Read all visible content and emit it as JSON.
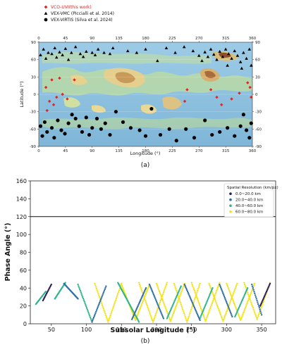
{
  "chart_data": [
    {
      "type": "scatter",
      "caption": "(a)",
      "xlabel": "Longitude (°)",
      "ylabel": "Latitude (°)",
      "xlim": [
        0,
        360
      ],
      "ylim": [
        -90,
        90
      ],
      "xticks": [
        "0",
        "45",
        "90",
        "135",
        "180",
        "225",
        "270",
        "315",
        "360"
      ],
      "yticks": [
        "90",
        "60",
        "30",
        "0",
        "-30",
        "-60",
        "-90"
      ],
      "background": "Venus topography map",
      "legend_position": "top-left, above plot",
      "series": [
        {
          "name": "VCO-UVI(this work)",
          "marker": "diamond",
          "color": "#e32222",
          "points": [
            [
              12,
              12
            ],
            [
              18,
              -12
            ],
            [
              22,
              25
            ],
            [
              25,
              -18
            ],
            [
              30,
              -5
            ],
            [
              35,
              28
            ],
            [
              14,
              -28
            ],
            [
              40,
              0
            ],
            [
              48,
              -8
            ],
            [
              60,
              25
            ],
            [
              250,
              8
            ],
            [
              246,
              -12
            ],
            [
              290,
              8
            ],
            [
              300,
              -5
            ],
            [
              308,
              -18
            ],
            [
              325,
              -8
            ],
            [
              338,
              2
            ],
            [
              352,
              20
            ],
            [
              356,
              12
            ],
            [
              358,
              -5
            ]
          ]
        },
        {
          "name": "VEX-VMC (Piccialli et al. 2014)",
          "marker": "triangle",
          "color": "#000000",
          "points": [
            [
              3,
              68
            ],
            [
              8,
              78
            ],
            [
              12,
              62
            ],
            [
              16,
              72
            ],
            [
              22,
              70
            ],
            [
              27,
              80
            ],
            [
              30,
              64
            ],
            [
              35,
              73
            ],
            [
              40,
              68
            ],
            [
              45,
              79
            ],
            [
              50,
              60
            ],
            [
              55,
              72
            ],
            [
              62,
              82
            ],
            [
              70,
              70
            ],
            [
              75,
              65
            ],
            [
              80,
              74
            ],
            [
              90,
              72
            ],
            [
              95,
              68
            ],
            [
              100,
              78
            ],
            [
              110,
              72
            ],
            [
              120,
              70
            ],
            [
              125,
              80
            ],
            [
              150,
              75
            ],
            [
              165,
              72
            ],
            [
              180,
              78
            ],
            [
              200,
              58
            ],
            [
              215,
              80
            ],
            [
              230,
              72
            ],
            [
              245,
              82
            ],
            [
              260,
              75
            ],
            [
              270,
              67
            ],
            [
              275,
              58
            ],
            [
              280,
              73
            ],
            [
              285,
              65
            ],
            [
              290,
              78
            ],
            [
              295,
              69
            ],
            [
              300,
              60
            ],
            [
              305,
              74
            ],
            [
              310,
              65
            ],
            [
              315,
              78
            ],
            [
              320,
              70
            ],
            [
              325,
              62
            ],
            [
              330,
              75
            ],
            [
              335,
              67
            ],
            [
              340,
              56
            ],
            [
              345,
              72
            ],
            [
              350,
              62
            ],
            [
              355,
              78
            ],
            [
              358,
              50
            ],
            [
              342,
              45
            ],
            [
              318,
              50
            ]
          ]
        },
        {
          "name": "VEX-VIRTIS (Silva et al. 2024)",
          "marker": "circle",
          "color": "#000000",
          "points": [
            [
              3,
              -55
            ],
            [
              6,
              -72
            ],
            [
              10,
              -48
            ],
            [
              14,
              -65
            ],
            [
              22,
              -58
            ],
            [
              26,
              -75
            ],
            [
              32,
              -45
            ],
            [
              38,
              -62
            ],
            [
              44,
              -68
            ],
            [
              50,
              -50
            ],
            [
              56,
              -35
            ],
            [
              62,
              -42
            ],
            [
              68,
              -55
            ],
            [
              73,
              -65
            ],
            [
              80,
              -40
            ],
            [
              85,
              -70
            ],
            [
              90,
              -58
            ],
            [
              98,
              -42
            ],
            [
              105,
              -60
            ],
            [
              112,
              -50
            ],
            [
              120,
              -70
            ],
            [
              130,
              -30
            ],
            [
              142,
              -48
            ],
            [
              155,
              -58
            ],
            [
              170,
              -62
            ],
            [
              180,
              -72
            ],
            [
              190,
              -25
            ],
            [
              205,
              -70
            ],
            [
              220,
              -60
            ],
            [
              232,
              -80
            ],
            [
              248,
              -60
            ],
            [
              262,
              -75
            ],
            [
              280,
              -45
            ],
            [
              292,
              -70
            ],
            [
              305,
              -65
            ],
            [
              318,
              -58
            ],
            [
              330,
              -72
            ],
            [
              340,
              -55
            ],
            [
              345,
              -35
            ],
            [
              350,
              -62
            ],
            [
              355,
              -75
            ],
            [
              358,
              -50
            ]
          ]
        }
      ]
    },
    {
      "type": "scatter",
      "caption": "(b)",
      "xlabel": "Subsolar Longitude (°)",
      "ylabel": "Phase Angle (°)",
      "xlim": [
        20,
        370
      ],
      "ylim": [
        0,
        160
      ],
      "xticks": [
        50,
        100,
        150,
        200,
        250,
        300,
        350
      ],
      "yticks": [
        0,
        20,
        40,
        60,
        80,
        100,
        120,
        140,
        160
      ],
      "reference_line_y": 120,
      "legend_title": "Spatial Resolution (km/px)",
      "legend_position": "upper-right",
      "series": [
        {
          "name": "0.0~20.0 km",
          "color": "#2b1f55"
        },
        {
          "name": "20.0~40.0 km",
          "color": "#2f6fa2"
        },
        {
          "name": "40.0~60.0 km",
          "color": "#2fb38c"
        },
        {
          "name": "60.0~80.0 km",
          "color": "#f2e21a"
        }
      ],
      "tracks": [
        {
          "x0": 28,
          "x1": 42,
          "ymin": 22,
          "ymax": 36,
          "dir": "up",
          "series": 2
        },
        {
          "x0": 38,
          "x1": 50,
          "ymin": 26,
          "ymax": 44,
          "dir": "up",
          "series": 0
        },
        {
          "x0": 55,
          "x1": 70,
          "ymin": 28,
          "ymax": 46,
          "dir": "up",
          "series": 2
        },
        {
          "x0": 68,
          "x1": 88,
          "ymin": 28,
          "ymax": 45,
          "dir": "down",
          "series": 1
        },
        {
          "x0": 88,
          "x1": 108,
          "ymin": 2,
          "ymax": 44,
          "dir": "down",
          "series": 2
        },
        {
          "x0": 108,
          "x1": 128,
          "ymin": 2,
          "ymax": 42,
          "dir": "up",
          "series": 1
        },
        {
          "x0": 112,
          "x1": 150,
          "ymin": 2,
          "ymax": 45,
          "dir": "v",
          "series": 3
        },
        {
          "x0": 145,
          "x1": 175,
          "ymin": 2,
          "ymax": 46,
          "dir": "down",
          "series": 2
        },
        {
          "x0": 150,
          "x1": 190,
          "ymin": 4,
          "ymax": 44,
          "dir": "v",
          "series": 3
        },
        {
          "x0": 165,
          "x1": 185,
          "ymin": 5,
          "ymax": 40,
          "dir": "up",
          "series": 1
        },
        {
          "x0": 175,
          "x1": 215,
          "ymin": 2,
          "ymax": 46,
          "dir": "v",
          "series": 3
        },
        {
          "x0": 190,
          "x1": 210,
          "ymin": 6,
          "ymax": 44,
          "dir": "down",
          "series": 1
        },
        {
          "x0": 200,
          "x1": 240,
          "ymin": 3,
          "ymax": 45,
          "dir": "v",
          "series": 3
        },
        {
          "x0": 215,
          "x1": 235,
          "ymin": 6,
          "ymax": 42,
          "dir": "up",
          "series": 2
        },
        {
          "x0": 225,
          "x1": 262,
          "ymin": 2,
          "ymax": 45,
          "dir": "v",
          "series": 3
        },
        {
          "x0": 240,
          "x1": 262,
          "ymin": 4,
          "ymax": 44,
          "dir": "down",
          "series": 1
        },
        {
          "x0": 250,
          "x1": 290,
          "ymin": 3,
          "ymax": 46,
          "dir": "v",
          "series": 3
        },
        {
          "x0": 262,
          "x1": 280,
          "ymin": 6,
          "ymax": 40,
          "dir": "up",
          "series": 2
        },
        {
          "x0": 275,
          "x1": 315,
          "ymin": 3,
          "ymax": 45,
          "dir": "v",
          "series": 3
        },
        {
          "x0": 290,
          "x1": 308,
          "ymin": 8,
          "ymax": 44,
          "dir": "down",
          "series": 1
        },
        {
          "x0": 300,
          "x1": 340,
          "ymin": 4,
          "ymax": 45,
          "dir": "v",
          "series": 3
        },
        {
          "x0": 312,
          "x1": 330,
          "ymin": 8,
          "ymax": 40,
          "dir": "up",
          "series": 2
        },
        {
          "x0": 325,
          "x1": 362,
          "ymin": 5,
          "ymax": 46,
          "dir": "v",
          "series": 3
        },
        {
          "x0": 336,
          "x1": 350,
          "ymin": 10,
          "ymax": 44,
          "dir": "down",
          "series": 1
        },
        {
          "x0": 348,
          "x1": 362,
          "ymin": 20,
          "ymax": 45,
          "dir": "up",
          "series": 0
        }
      ]
    }
  ]
}
